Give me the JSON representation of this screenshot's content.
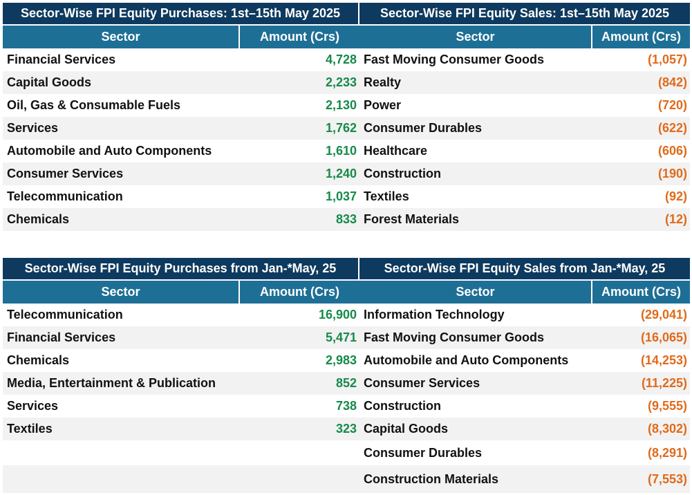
{
  "top_left": {
    "title": "Sector-Wise FPI Equity Purchases: 1st–15th May 2025",
    "col_sector": "Sector",
    "col_amount": "Amount (Crs)",
    "rows": [
      {
        "sector": "Financial Services",
        "amount": "4,728"
      },
      {
        "sector": "Capital Goods",
        "amount": "2,233"
      },
      {
        "sector": "Oil, Gas & Consumable Fuels",
        "amount": "2,130"
      },
      {
        "sector": "Services",
        "amount": "1,762"
      },
      {
        "sector": "Automobile and Auto Components",
        "amount": "1,610"
      },
      {
        "sector": "Consumer Services",
        "amount": "1,240"
      },
      {
        "sector": "Telecommunication",
        "amount": "1,037"
      },
      {
        "sector": "Chemicals",
        "amount": "833"
      }
    ]
  },
  "top_right": {
    "title": "Sector-Wise FPI Equity Sales: 1st–15th May 2025",
    "col_sector": "Sector",
    "col_amount": "Amount (Crs)",
    "rows": [
      {
        "sector": "Fast Moving Consumer Goods",
        "amount": "(1,057)"
      },
      {
        "sector": "Realty",
        "amount": "(842)"
      },
      {
        "sector": "Power",
        "amount": "(720)"
      },
      {
        "sector": "Consumer Durables",
        "amount": "(622)"
      },
      {
        "sector": "Healthcare",
        "amount": "(606)"
      },
      {
        "sector": "Construction",
        "amount": "(190)"
      },
      {
        "sector": "Textiles",
        "amount": "(92)"
      },
      {
        "sector": "Forest Materials",
        "amount": "(12)"
      }
    ]
  },
  "bottom_left": {
    "title": "Sector-Wise FPI Equity Purchases from Jan-*May, 25",
    "col_sector": "Sector",
    "col_amount": "Amount (Crs)",
    "rows": [
      {
        "sector": "Telecommunication",
        "amount": "16,900"
      },
      {
        "sector": "Financial Services",
        "amount": "5,471"
      },
      {
        "sector": "Chemicals",
        "amount": "2,983"
      },
      {
        "sector": "Media, Entertainment & Publication",
        "amount": "852"
      },
      {
        "sector": "Services",
        "amount": "738"
      },
      {
        "sector": "Textiles",
        "amount": "323"
      },
      {
        "sector": "",
        "amount": ""
      },
      {
        "sector": "",
        "amount": ""
      }
    ]
  },
  "bottom_right": {
    "title": "Sector-Wise FPI Equity Sales from Jan-*May, 25",
    "col_sector": "Sector",
    "col_amount": "Amount (Crs)",
    "rows": [
      {
        "sector": "Information Technology",
        "amount": "(29,041)"
      },
      {
        "sector": "Fast Moving Consumer Goods",
        "amount": "(16,065)"
      },
      {
        "sector": "Automobile and Auto Components",
        "amount": "(14,253)"
      },
      {
        "sector": "Consumer Services",
        "amount": "(11,225)"
      },
      {
        "sector": "Construction",
        "amount": "(9,555)"
      },
      {
        "sector": "Capital Goods",
        "amount": "(8,302)"
      },
      {
        "sector": "Consumer Durables",
        "amount": "(8,291)"
      },
      {
        "sector": "Construction Materials",
        "amount": "(7,553)"
      }
    ]
  },
  "colors": {
    "title_bg": "#0e3a5f",
    "header_bg": "#1e6f96",
    "purchase_amount": "#158a4a",
    "sale_amount": "#e06a1b"
  }
}
